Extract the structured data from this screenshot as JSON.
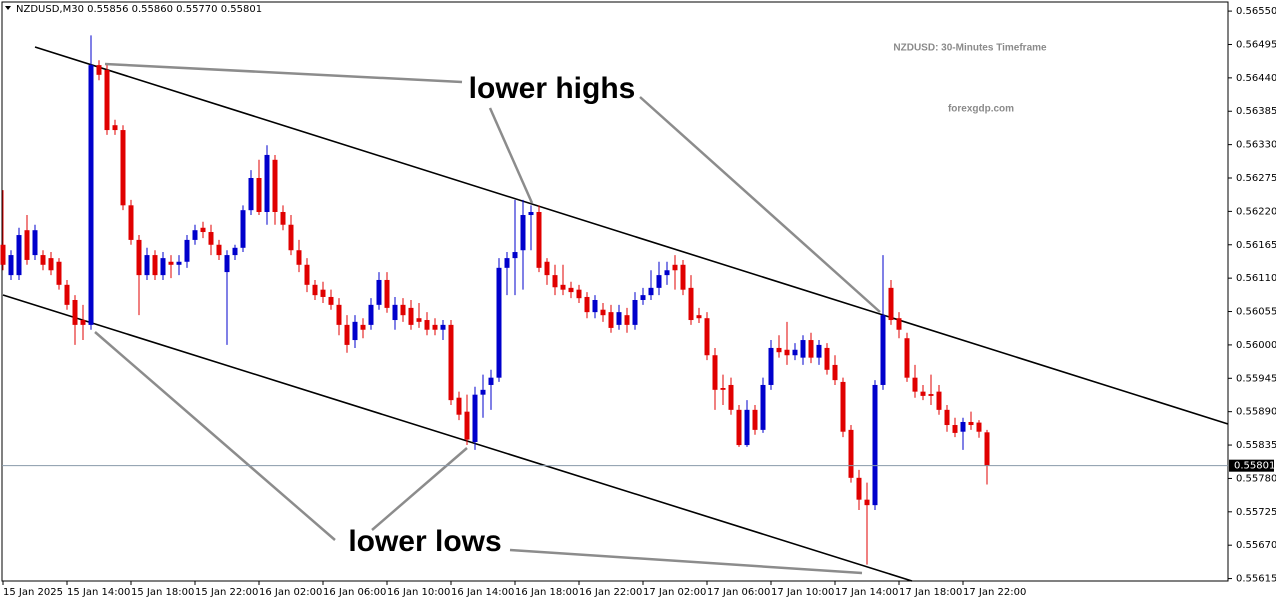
{
  "chart_data": {
    "type": "candlestick",
    "header": "NZDUSD,M30  0.55856 0.55860 0.55770 0.55801",
    "title": "NZDUSD: 30-Minutes Timeframe",
    "subtitle": "forexgdp.com",
    "annotations": [
      "lower highs",
      "lower lows"
    ],
    "up_color": "#0000cc",
    "down_color": "#e00000",
    "current_price": 0.55801,
    "ylim": [
      0.55611,
      0.56565
    ],
    "yticks": [
      {
        "value": 0.5655,
        "label": "0.56550"
      },
      {
        "value": 0.56495,
        "label": "0.56495"
      },
      {
        "value": 0.5644,
        "label": "0.56440"
      },
      {
        "value": 0.56385,
        "label": "0.56385"
      },
      {
        "value": 0.5633,
        "label": "0.56330"
      },
      {
        "value": 0.56275,
        "label": "0.56275"
      },
      {
        "value": 0.5622,
        "label": "0.56220"
      },
      {
        "value": 0.56165,
        "label": "0.56165"
      },
      {
        "value": 0.5611,
        "label": "0.56110"
      },
      {
        "value": 0.56055,
        "label": "0.56055"
      },
      {
        "value": 0.56,
        "label": "0.56000"
      },
      {
        "value": 0.55945,
        "label": "0.55945"
      },
      {
        "value": 0.5589,
        "label": "0.55890"
      },
      {
        "value": 0.55835,
        "label": "0.55835"
      },
      {
        "value": 0.5578,
        "label": "0.55780"
      },
      {
        "value": 0.55725,
        "label": "0.55725"
      },
      {
        "value": 0.5567,
        "label": "0.55670"
      },
      {
        "value": 0.55615,
        "label": "0.55615"
      }
    ],
    "categories": [
      "15 Jan 2025",
      null,
      null,
      null,
      null,
      null,
      null,
      null,
      "15 Jan 14:00",
      null,
      null,
      null,
      null,
      null,
      null,
      null,
      "15 Jan 18:00",
      null,
      null,
      null,
      null,
      null,
      null,
      null,
      "15 Jan 22:00",
      null,
      null,
      null,
      null,
      null,
      null,
      null,
      "16 Jan 02:00",
      null,
      null,
      null,
      null,
      null,
      null,
      null,
      "16 Jan 06:00",
      null,
      null,
      null,
      null,
      null,
      null,
      null,
      "16 Jan 10:00",
      null,
      null,
      null,
      null,
      null,
      null,
      null,
      "16 Jan 14:00",
      null,
      null,
      null,
      null,
      null,
      null,
      null,
      "16 Jan 18:00",
      null,
      null,
      null,
      null,
      null,
      null,
      null,
      "16 Jan 22:00",
      null,
      null,
      null,
      null,
      null,
      null,
      null,
      "17 Jan 02:00",
      null,
      null,
      null,
      null,
      null,
      null,
      null,
      "17 Jan 06:00",
      null,
      null,
      null,
      null,
      null,
      null,
      null,
      "17 Jan 10:00",
      null,
      null,
      null,
      null,
      null,
      null,
      null,
      "17 Jan 14:00",
      null,
      null,
      null,
      null,
      null,
      null,
      null,
      "17 Jan 18:00",
      null,
      null,
      null,
      null,
      null,
      null,
      null,
      "17 Jan 22:00",
      null,
      null,
      null
    ],
    "open": [
      0.56165,
      0.56115,
      0.56115,
      0.56189,
      0.56148,
      0.56148,
      0.56143,
      0.56137,
      0.56099,
      0.56074,
      0.56041,
      0.56033,
      0.56461,
      0.56453,
      0.56362,
      0.56354,
      0.5623,
      0.56173,
      0.56115,
      0.56148,
      0.56115,
      0.56137,
      0.56132,
      0.56137,
      0.56173,
      0.56193,
      0.56186,
      0.56165,
      0.5612,
      0.56148,
      0.5616,
      0.56222,
      0.56275,
      0.56219,
      0.56305,
      0.56219,
      0.56198,
      0.56156,
      0.56132,
      0.56099,
      0.56091,
      0.56079,
      0.56066,
      0.56033,
      0.56008,
      0.56033,
      0.56033,
      0.56066,
      0.56107,
      0.56041,
      0.56066,
      0.56061,
      0.56044,
      0.56041,
      0.56033,
      0.56025,
      0.56033,
      0.55913,
      0.5589,
      0.5584,
      0.55918,
      0.55934,
      0.55946,
      0.56127,
      0.56143,
      0.56156,
      0.56214,
      0.56219,
      0.56137,
      0.56115,
      0.56099,
      0.56094,
      0.56091,
      0.56079,
      0.56054,
      0.56058,
      0.56054,
      0.56033,
      0.56049,
      0.56033,
      0.56074,
      0.56082,
      0.56094,
      0.56115,
      0.56132,
      0.56132,
      0.56094,
      0.56049,
      0.56044,
      0.55983,
      0.55929,
      0.55934,
      0.55893,
      0.55835,
      0.55893,
      0.5586,
      0.55934,
      0.55995,
      0.55992,
      0.55983,
      0.55979,
      0.56008,
      0.55979,
      0.55995,
      0.55967,
      0.55939,
      0.5586,
      0.55781,
      0.55745,
      0.55736,
      0.55934,
      0.56094,
      0.56044,
      0.56011,
      0.55946,
      0.55923,
      0.55919,
      0.55923,
      0.55893,
      0.55868,
      0.55857,
      0.55873,
      0.55872,
      0.55856
    ],
    "high": [
      0.56255,
      0.56156,
      0.56193,
      0.56214,
      0.56198,
      0.56156,
      0.56153,
      0.56143,
      0.56107,
      0.56082,
      0.56066,
      0.5651,
      0.56469,
      0.56461,
      0.56371,
      0.56362,
      0.56239,
      0.56181,
      0.5616,
      0.56156,
      0.56153,
      0.56148,
      0.56148,
      0.56181,
      0.56198,
      0.56203,
      0.56198,
      0.56173,
      0.56156,
      0.56165,
      0.5623,
      0.56288,
      0.56305,
      0.56329,
      0.56313,
      0.5623,
      0.56214,
      0.56173,
      0.56143,
      0.56107,
      0.56104,
      0.56091,
      0.56077,
      0.56049,
      0.56049,
      0.56044,
      0.56077,
      0.5612,
      0.5612,
      0.56079,
      0.56077,
      0.56074,
      0.56069,
      0.56054,
      0.56044,
      0.56041,
      0.56041,
      0.55923,
      0.55918,
      0.55931,
      0.55951,
      0.55959,
      0.56143,
      0.56153,
      0.56239,
      0.56239,
      0.5623,
      0.5623,
      0.56143,
      0.56132,
      0.56132,
      0.56104,
      0.56099,
      0.56087,
      0.56082,
      0.56069,
      0.56066,
      0.56066,
      0.56061,
      0.56087,
      0.56094,
      0.56123,
      0.56137,
      0.56137,
      0.56148,
      0.5614,
      0.56115,
      0.56061,
      0.56054,
      0.55995,
      0.55951,
      0.55946,
      0.55901,
      0.55909,
      0.55901,
      0.55946,
      0.56008,
      0.56016,
      0.56038,
      0.56003,
      0.56016,
      0.5602,
      0.56008,
      0.56003,
      0.55983,
      0.55946,
      0.55868,
      0.55794,
      0.55773,
      0.55942,
      0.56148,
      0.56107,
      0.56054,
      0.5602,
      0.55967,
      0.55934,
      0.55951,
      0.55934,
      0.55901,
      0.5588,
      0.5588,
      0.5589,
      0.55876,
      0.5586
    ],
    "low": [
      0.56123,
      0.56107,
      0.56107,
      0.56132,
      0.5614,
      0.56123,
      0.56115,
      0.56091,
      0.56058,
      0.56,
      0.56008,
      0.56025,
      0.56436,
      0.56346,
      0.56346,
      0.56222,
      0.56165,
      0.56049,
      0.56107,
      0.56107,
      0.56107,
      0.5611,
      0.56115,
      0.56127,
      0.56165,
      0.56176,
      0.56148,
      0.5614,
      0.56,
      0.5614,
      0.56153,
      0.56214,
      0.56214,
      0.56198,
      0.56198,
      0.56189,
      0.56148,
      0.5612,
      0.56087,
      0.56074,
      0.56069,
      0.56058,
      0.56016,
      0.55987,
      0.55995,
      0.56011,
      0.56025,
      0.56058,
      0.56053,
      0.56025,
      0.56038,
      0.56025,
      0.56028,
      0.56016,
      0.56016,
      0.56008,
      0.55901,
      0.55876,
      0.55835,
      0.55827,
      0.5588,
      0.55893,
      0.55939,
      0.56082,
      0.56082,
      0.56091,
      0.56156,
      0.5612,
      0.56099,
      0.56082,
      0.56082,
      0.56077,
      0.56069,
      0.56044,
      0.56044,
      0.56038,
      0.5602,
      0.56025,
      0.5602,
      0.56025,
      0.56066,
      0.56074,
      0.56082,
      0.56099,
      0.56091,
      0.56082,
      0.56033,
      0.56036,
      0.55975,
      0.55893,
      0.55901,
      0.55885,
      0.55832,
      0.55832,
      0.55852,
      0.55855,
      0.55926,
      0.55979,
      0.55967,
      0.55975,
      0.55967,
      0.5597,
      0.55967,
      0.55951,
      0.55934,
      0.55848,
      0.55773,
      0.55728,
      0.55638,
      0.55728,
      0.55926,
      0.56033,
      0.56011,
      0.55939,
      0.55913,
      0.55909,
      0.55901,
      0.55885,
      0.55857,
      0.55848,
      0.55827,
      0.5586,
      0.55847,
      0.5577
    ],
    "close": [
      0.56132,
      0.56148,
      0.56181,
      0.5614,
      0.56189,
      0.56132,
      0.56123,
      0.56099,
      0.56066,
      0.56033,
      0.56033,
      0.56461,
      0.56445,
      0.56354,
      0.56354,
      0.5623,
      0.56173,
      0.56115,
      0.56148,
      0.56115,
      0.56143,
      0.56132,
      0.56137,
      0.56173,
      0.56189,
      0.56186,
      0.56165,
      0.56148,
      0.56148,
      0.5616,
      0.56222,
      0.56275,
      0.56219,
      0.56313,
      0.56219,
      0.56198,
      0.56156,
      0.56132,
      0.56099,
      0.56082,
      0.56079,
      0.56066,
      0.56033,
      0.56,
      0.56038,
      0.56025,
      0.56066,
      0.56107,
      0.56061,
      0.56066,
      0.56049,
      0.56033,
      0.56038,
      0.56025,
      0.56025,
      0.56033,
      0.55909,
      0.55885,
      0.55844,
      0.55918,
      0.55926,
      0.55946,
      0.56127,
      0.56143,
      0.56153,
      0.56214,
      0.56219,
      0.56127,
      0.56115,
      0.56095,
      0.56091,
      0.56087,
      0.56077,
      0.56054,
      0.56074,
      0.56049,
      0.56028,
      0.56054,
      0.56033,
      0.56074,
      0.56082,
      0.56094,
      0.56115,
      0.56123,
      0.56123,
      0.56091,
      0.56041,
      0.56044,
      0.55983,
      0.55926,
      0.55926,
      0.55893,
      0.55835,
      0.55893,
      0.5586,
      0.55934,
      0.55995,
      0.55988,
      0.55983,
      0.55992,
      0.56008,
      0.55979,
      0.56,
      0.55959,
      0.55942,
      0.55857,
      0.55781,
      0.55745,
      0.55736,
      0.55934,
      0.56049,
      0.56041,
      0.56025,
      0.55946,
      0.55923,
      0.55916,
      0.55916,
      0.55893,
      0.55868,
      0.55855,
      0.55873,
      0.55868,
      0.55857,
      0.55801
    ]
  }
}
